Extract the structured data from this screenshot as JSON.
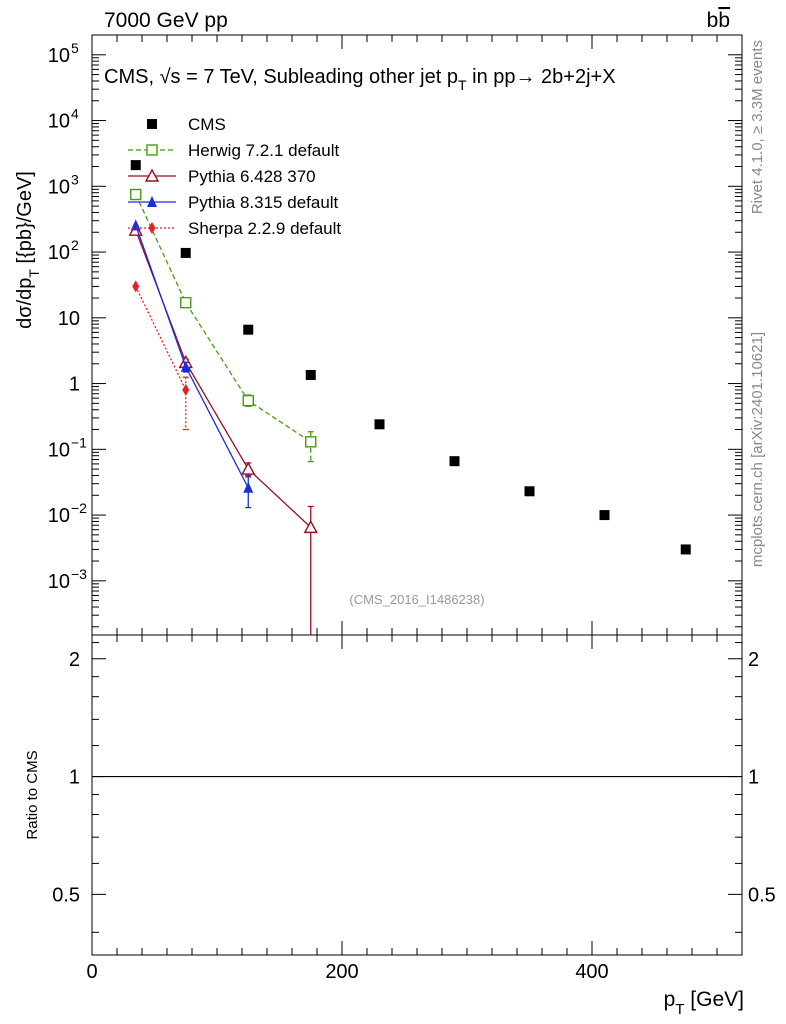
{
  "header": {
    "left": "7000 GeV pp",
    "right": "b̅b"
  },
  "right_margin": {
    "rivet": "Rivet 4.1.0, ≥ 3.3M events",
    "mcplots": "mcplots.cern.ch [arXiv:2401.10621]"
  },
  "chart_data": {
    "type": "scatter",
    "title": "CMS, √s = 7 TeV, Subleading other jet p_T in pp→ 2b+2j+X",
    "title_parts": {
      "prefix": "CMS, ",
      "sqrt": "√",
      "s_rest": "s = 7 TeV, Subleading other jet p",
      "sub": "T",
      "suffix": " in pp→  2b+2j+X"
    },
    "ylabel": "dσ/dp_T [{pb}/GeV]",
    "ylabel_parts": {
      "main": "dσ/dp",
      "sub": "T",
      "rest": " [{pb}/GeV]"
    },
    "xlabel": "p_T [GeV]",
    "xlabel_parts": {
      "main": "p",
      "sub": "T",
      "rest": " [GeV]"
    },
    "ratio_ylabel": "Ratio to CMS",
    "analysis_tag": "(CMS_2016_I1486238)",
    "xlim": [
      0,
      520
    ],
    "ylim_log": [
      0.00015,
      200000
    ],
    "ratio_ylim": [
      0.35,
      2.3
    ],
    "x_ticks": [
      {
        "v": 0,
        "l": "0"
      },
      {
        "v": 200,
        "l": "200"
      },
      {
        "v": 400,
        "l": "400"
      }
    ],
    "y_ticks": [
      {
        "v": 0.001,
        "b": "10",
        "e": "−3"
      },
      {
        "v": 0.01,
        "b": "10",
        "e": "−2"
      },
      {
        "v": 0.1,
        "b": "10",
        "e": "−1"
      },
      {
        "v": 1,
        "b": "1",
        "e": ""
      },
      {
        "v": 10,
        "b": "10",
        "e": ""
      },
      {
        "v": 100,
        "b": "10",
        "e": "2"
      },
      {
        "v": 1000,
        "b": "10",
        "e": "3"
      },
      {
        "v": 10000,
        "b": "10",
        "e": "4"
      },
      {
        "v": 100000,
        "b": "10",
        "e": "5"
      }
    ],
    "ratio_ticks": [
      {
        "v": 0.5,
        "l": "0.5"
      },
      {
        "v": 1,
        "l": "1"
      },
      {
        "v": 2,
        "l": "2"
      }
    ],
    "series": [
      {
        "name": "CMS",
        "label": "CMS",
        "color": "#000000",
        "marker": "square",
        "line": "none",
        "points": [
          [
            35,
            2100
          ],
          [
            75,
            97
          ],
          [
            125,
            6.6
          ],
          [
            175,
            1.35
          ],
          [
            230,
            0.24
          ],
          [
            290,
            0.066
          ],
          [
            350,
            0.023
          ],
          [
            410,
            0.01
          ],
          [
            475,
            0.003
          ]
        ]
      },
      {
        "name": "Herwig",
        "label": "Herwig 7.2.1 default",
        "color": "#4a9a13",
        "marker": "open-square",
        "line": "dashed",
        "points": [
          [
            35,
            750,
            0,
            0
          ],
          [
            75,
            17,
            2,
            2
          ],
          [
            125,
            0.55,
            0.1,
            0.12
          ],
          [
            175,
            0.13,
            0.065,
            0.055
          ]
        ]
      },
      {
        "name": "Pythia6",
        "label": "Pythia 6.428 370",
        "color": "#9b0f1e",
        "marker": "open-triangle",
        "line": "solid",
        "points": [
          [
            35,
            215,
            0,
            0
          ],
          [
            75,
            2.1,
            0.25,
            0.25
          ],
          [
            125,
            0.05,
            0.012,
            0.012
          ],
          [
            175,
            0.0065,
            0.0065,
            0.007
          ]
        ]
      },
      {
        "name": "Pythia8",
        "label": "Pythia 8.315 default",
        "color": "#1930d8",
        "marker": "triangle",
        "line": "solid",
        "points": [
          [
            35,
            255,
            0,
            0
          ],
          [
            75,
            1.8,
            0.3,
            0.3
          ],
          [
            125,
            0.026,
            0.013,
            0.014
          ]
        ]
      },
      {
        "name": "Sherpa",
        "label": "Sherpa 2.2.9 default",
        "color": "#ee1c1c",
        "marker": "diamond",
        "line": "dotted",
        "points": [
          [
            35,
            30,
            0,
            0
          ],
          [
            75,
            0.8,
            0.6,
            0.45
          ]
        ]
      }
    ],
    "ratio_line": 1
  }
}
